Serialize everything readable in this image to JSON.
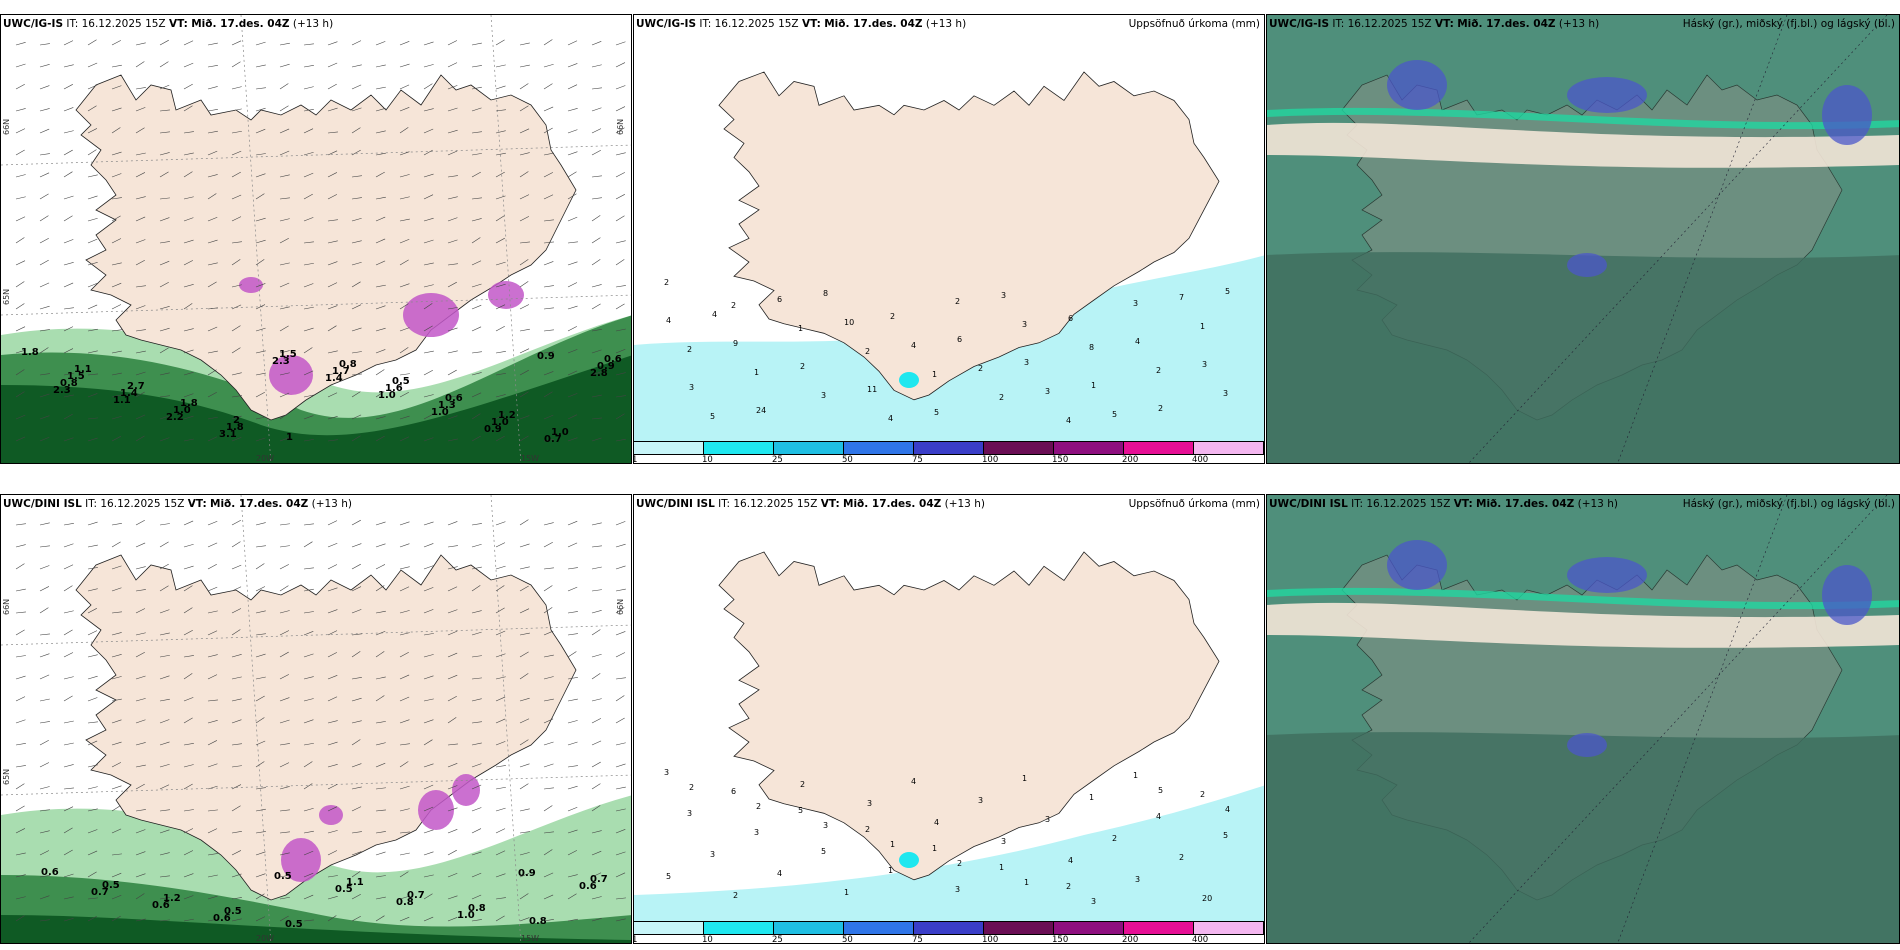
{
  "rows": [
    {
      "id": "igis",
      "model": "UWC/IG-IS",
      "it_label": "IT:",
      "it_value": "16.12.2025 15Z",
      "vt_label": "VT:",
      "vt_value": "Mið. 17.des. 04Z",
      "lead": "(+13 h)",
      "lat_labels": [
        "66N",
        "66N",
        "65N"
      ],
      "lon_labels": [
        "20W",
        "15W"
      ],
      "wind_values": [
        "1.8",
        "1.1",
        "2.7",
        "1.8",
        "2",
        "1",
        "0.8",
        "0.5",
        "0.6",
        "1.2",
        "1.0",
        "0.6",
        "1.5",
        "1.4",
        "1.0",
        "1.8",
        "1.5",
        "1.7",
        "1.6",
        "1.3",
        "1.0",
        "0.7",
        "0.9",
        "0.8",
        "1.1",
        "2.2",
        "3.1",
        "2.3",
        "1.4",
        "1.0",
        "1.0",
        "0.9",
        "0.9",
        "2.8",
        "2.3"
      ],
      "precip_values": [
        "2",
        "2",
        "1",
        "2",
        "1",
        "2",
        "4",
        "3",
        "1",
        "2",
        "1",
        "3",
        "4",
        "2",
        "3",
        "8",
        "2",
        "3",
        "5",
        "6",
        "10",
        "4",
        "2",
        "3",
        "5",
        "7",
        "4",
        "9",
        "2",
        "11",
        "5",
        "3",
        "6",
        "4",
        "3",
        "3",
        "24",
        "8",
        "2",
        "6",
        "3",
        "1",
        "2",
        "5",
        "4"
      ],
      "cloud_title": "Háský (gr.), miðský (fj.bl.) og lágský (bl.)"
    },
    {
      "id": "dini",
      "model": "UWC/DINI ISL",
      "it_label": "IT:",
      "it_value": "16.12.2025 15Z",
      "vt_label": "VT:",
      "vt_value": "Mið. 17.des. 04Z",
      "lead": "(+13 h)",
      "lat_labels": [
        "66N",
        "66N",
        "65N"
      ],
      "lon_labels": [
        "20W",
        "15W"
      ],
      "wind_values": [
        "0.6",
        "0.5",
        "1.2",
        "0.5",
        "0.5",
        "1.1",
        "0.7",
        "0.8",
        "0.8",
        "0.7",
        "0.7",
        "0.6",
        "0.6",
        "0.5",
        "0.5",
        "0.8",
        "1.0",
        "0.9",
        "0.6"
      ],
      "precip_values": [
        "3",
        "6",
        "5",
        "2",
        "1",
        "1",
        "2",
        "1",
        "2",
        "3",
        "3",
        "5",
        "1",
        "3",
        "1",
        "1",
        "4",
        "5",
        "3",
        "4",
        "1",
        "4",
        "3",
        "3",
        "2",
        "2",
        "5",
        "2",
        "2",
        "3",
        "4",
        "3",
        "4",
        "3",
        "20",
        "2",
        "2",
        "3",
        "1",
        "2",
        "1",
        "3",
        "5",
        "4"
      ],
      "cloud_title": "Háský (gr.), miðský (fj.bl.) og lágský (bl.)"
    }
  ],
  "precip_title": "Uppsöfnuð úrkoma (mm)",
  "colorbar": {
    "ticks": [
      "1",
      "10",
      "25",
      "50",
      "75",
      "100",
      "150",
      "200",
      "400"
    ],
    "colors": [
      "#c7f5f8",
      "#1fe7ef",
      "#1fbfe3",
      "#2f75e8",
      "#3a3ec8",
      "#6a0e55",
      "#8e0f7f",
      "#e60f95",
      "#f3b6ef"
    ]
  },
  "colors": {
    "land": "#f6e5d8",
    "sea_cloud": "#4f8f7b",
    "green_dark": "#0f5a24",
    "green_mid": "#3e8f4f",
    "green_light": "#a9ddb0",
    "purple": "#c257c8",
    "cyan_light": "#b8f3f6"
  }
}
